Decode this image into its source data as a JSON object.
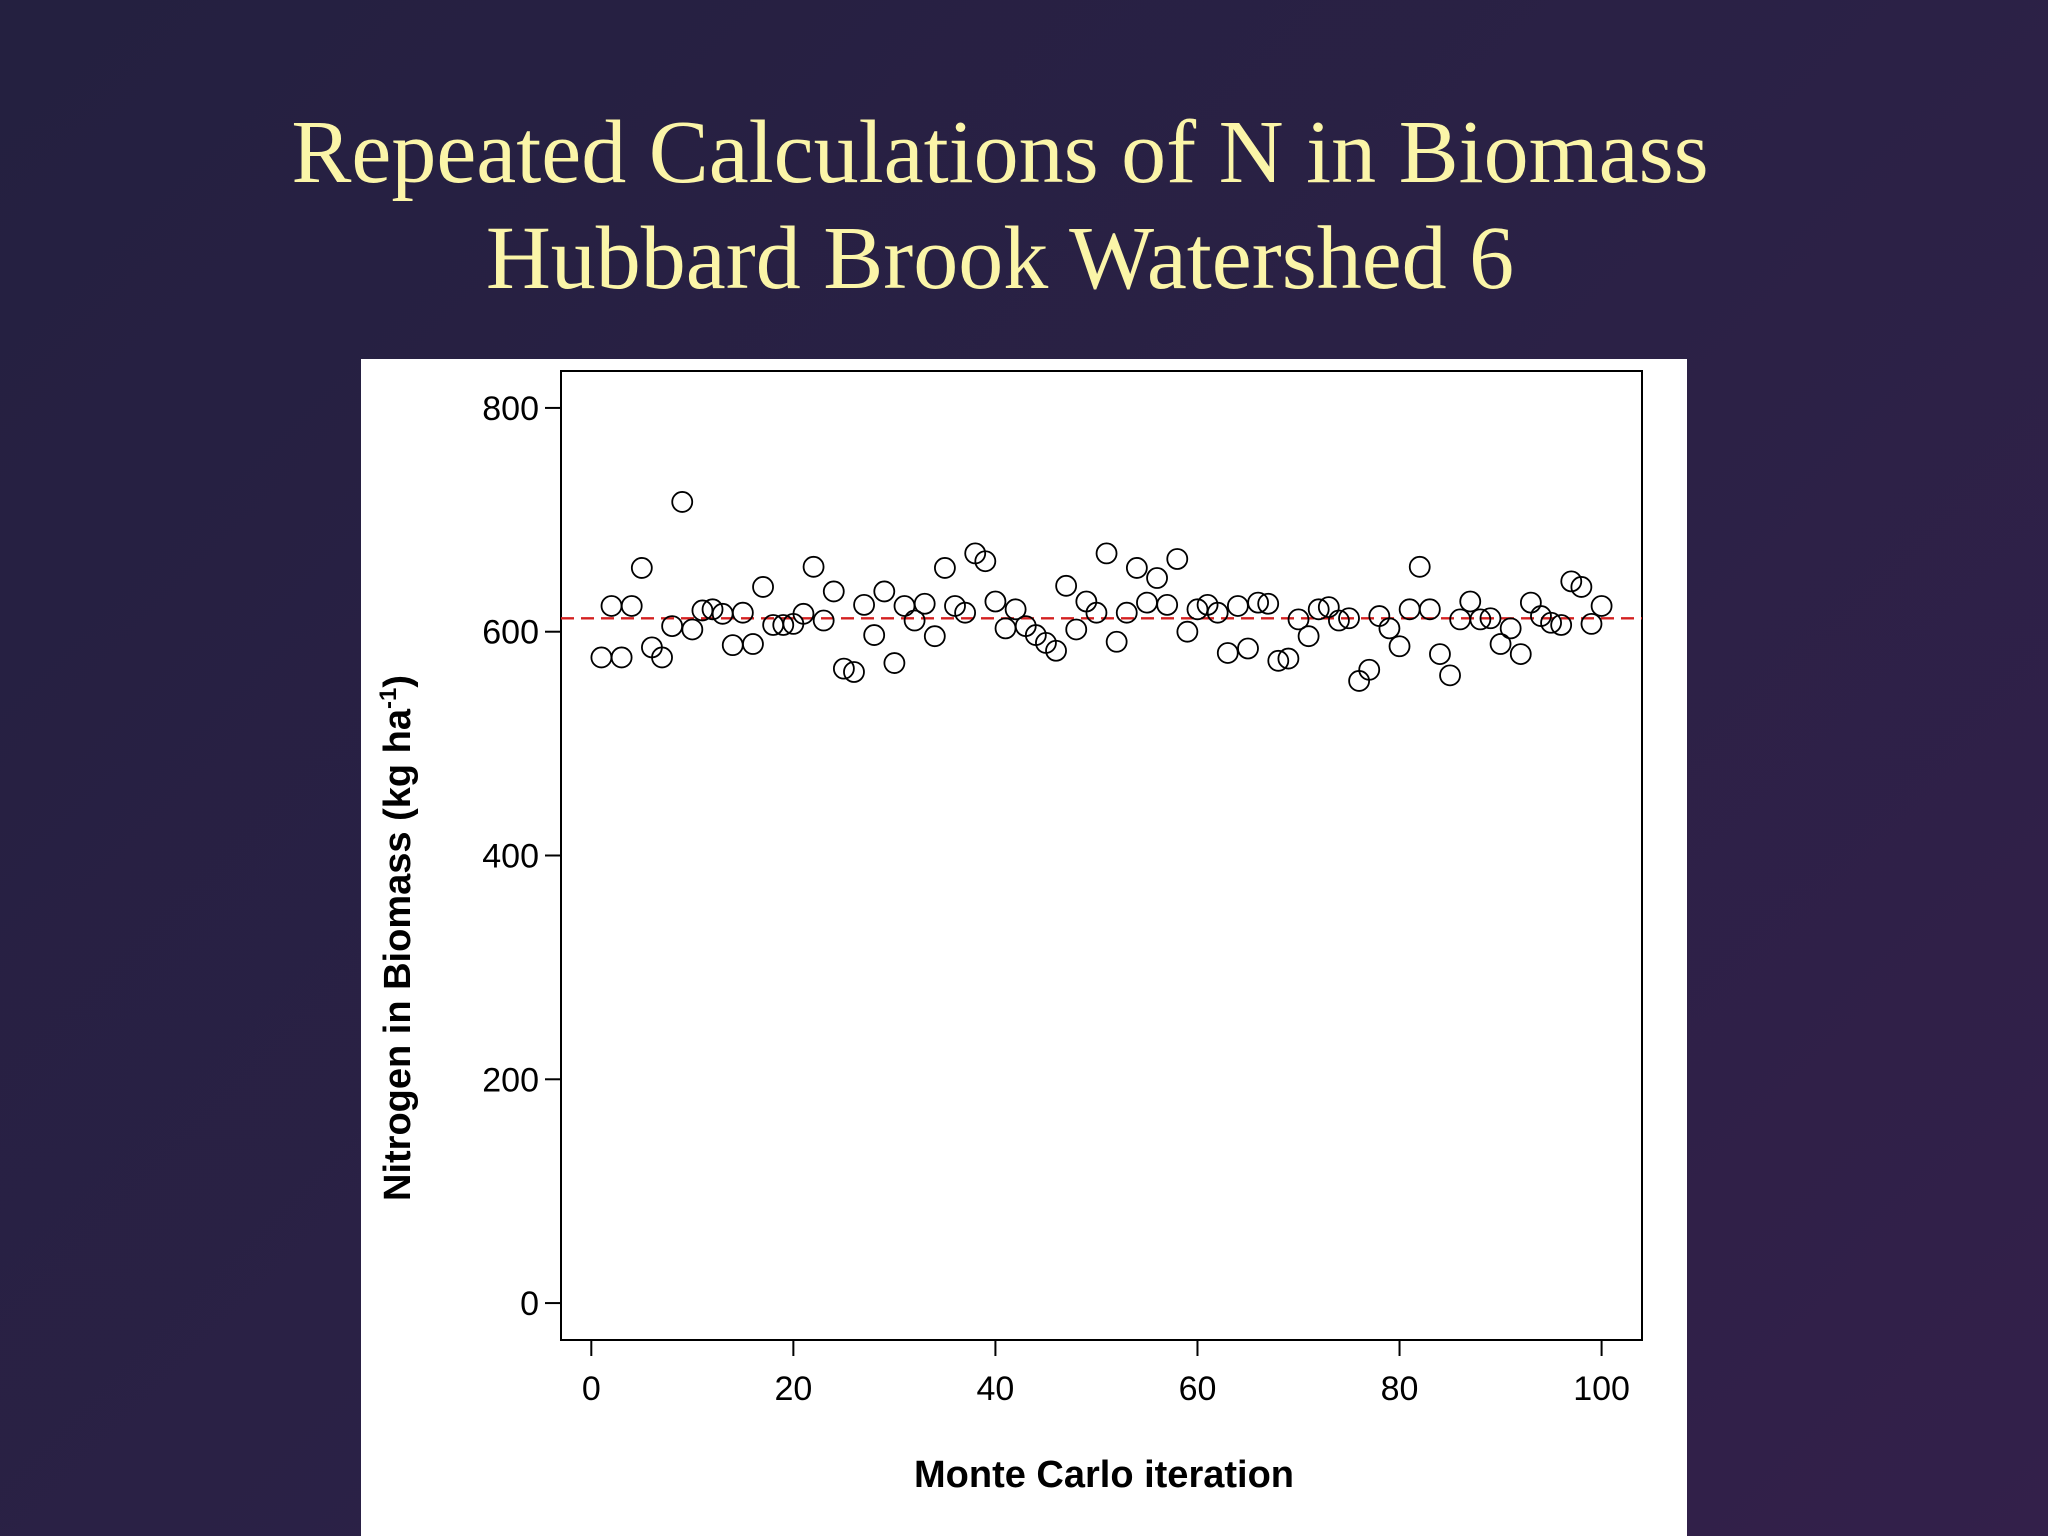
{
  "slide": {
    "title_line1": "Repeated Calculations of N in Biomass",
    "title_line2": "Hubbard Brook Watershed 6"
  },
  "colors": {
    "background": "#2a2145",
    "title": "#fbf5a8",
    "plot_background": "#ffffff",
    "points": "#000000",
    "mean_line": "#d42020"
  },
  "chart_data": {
    "type": "scatter",
    "title": "",
    "xlabel": "Monte Carlo iteration",
    "ylabel": "Nitrogen in Biomass (kg ha-1)",
    "ylabel_main": "Nitrogen in Biomass (kg ha",
    "ylabel_sup": "-1",
    "ylabel_close": ")",
    "xlim": [
      -3,
      104
    ],
    "ylim": [
      -33,
      833
    ],
    "xticks": [
      0,
      20,
      40,
      60,
      80,
      100
    ],
    "yticks": [
      0,
      200,
      400,
      600,
      800
    ],
    "x_tick_labels": [
      "0",
      "20",
      "40",
      "60",
      "80",
      "100"
    ],
    "y_tick_labels": [
      "0",
      "200",
      "400",
      "600",
      "800"
    ],
    "grid": false,
    "marker": "open-circle",
    "mean_line": {
      "y": 612,
      "style": "dashed",
      "color": "#d42020"
    },
    "series": [
      {
        "x": [
          1,
          2,
          3,
          4,
          5,
          6,
          7,
          8,
          9,
          10,
          11,
          12,
          13,
          14,
          15,
          16,
          17,
          18,
          19,
          20,
          21,
          22,
          23,
          24,
          25,
          26,
          27,
          28,
          29,
          30,
          31,
          32,
          33,
          34,
          35,
          36,
          37,
          38,
          39,
          40,
          41,
          42,
          43,
          44,
          45,
          46,
          47,
          48,
          49,
          50,
          51,
          52,
          53,
          54,
          55,
          56,
          57,
          58,
          59,
          60,
          61,
          62,
          63,
          64,
          65,
          66,
          67,
          68,
          69,
          70,
          71,
          72,
          73,
          74,
          75,
          76,
          77,
          78,
          79,
          80,
          81,
          82,
          83,
          84,
          85,
          86,
          87,
          88,
          89,
          90,
          91,
          92,
          93,
          94,
          95,
          96,
          97,
          98,
          99,
          100
        ],
        "y": [
          577,
          623,
          577,
          623,
          657,
          586,
          577,
          605,
          716,
          602,
          619,
          620,
          616,
          588,
          617,
          589,
          640,
          606,
          606,
          607,
          616,
          658,
          610,
          636,
          567,
          564,
          624,
          597,
          636,
          572,
          623,
          610,
          625,
          596,
          657,
          623,
          617,
          670,
          663,
          627,
          603,
          620,
          605,
          597,
          590,
          583,
          641,
          602,
          627,
          617,
          670,
          591,
          617,
          657,
          626,
          648,
          624,
          665,
          600,
          620,
          624,
          617,
          581,
          623,
          585,
          626,
          625,
          574,
          576,
          611,
          596,
          620,
          622,
          610,
          612,
          556,
          566,
          614,
          603,
          587,
          620,
          658,
          620,
          580,
          561,
          611,
          627,
          611,
          612,
          589,
          603,
          580,
          626,
          614,
          608,
          606,
          645,
          640,
          607,
          623
        ]
      }
    ]
  }
}
